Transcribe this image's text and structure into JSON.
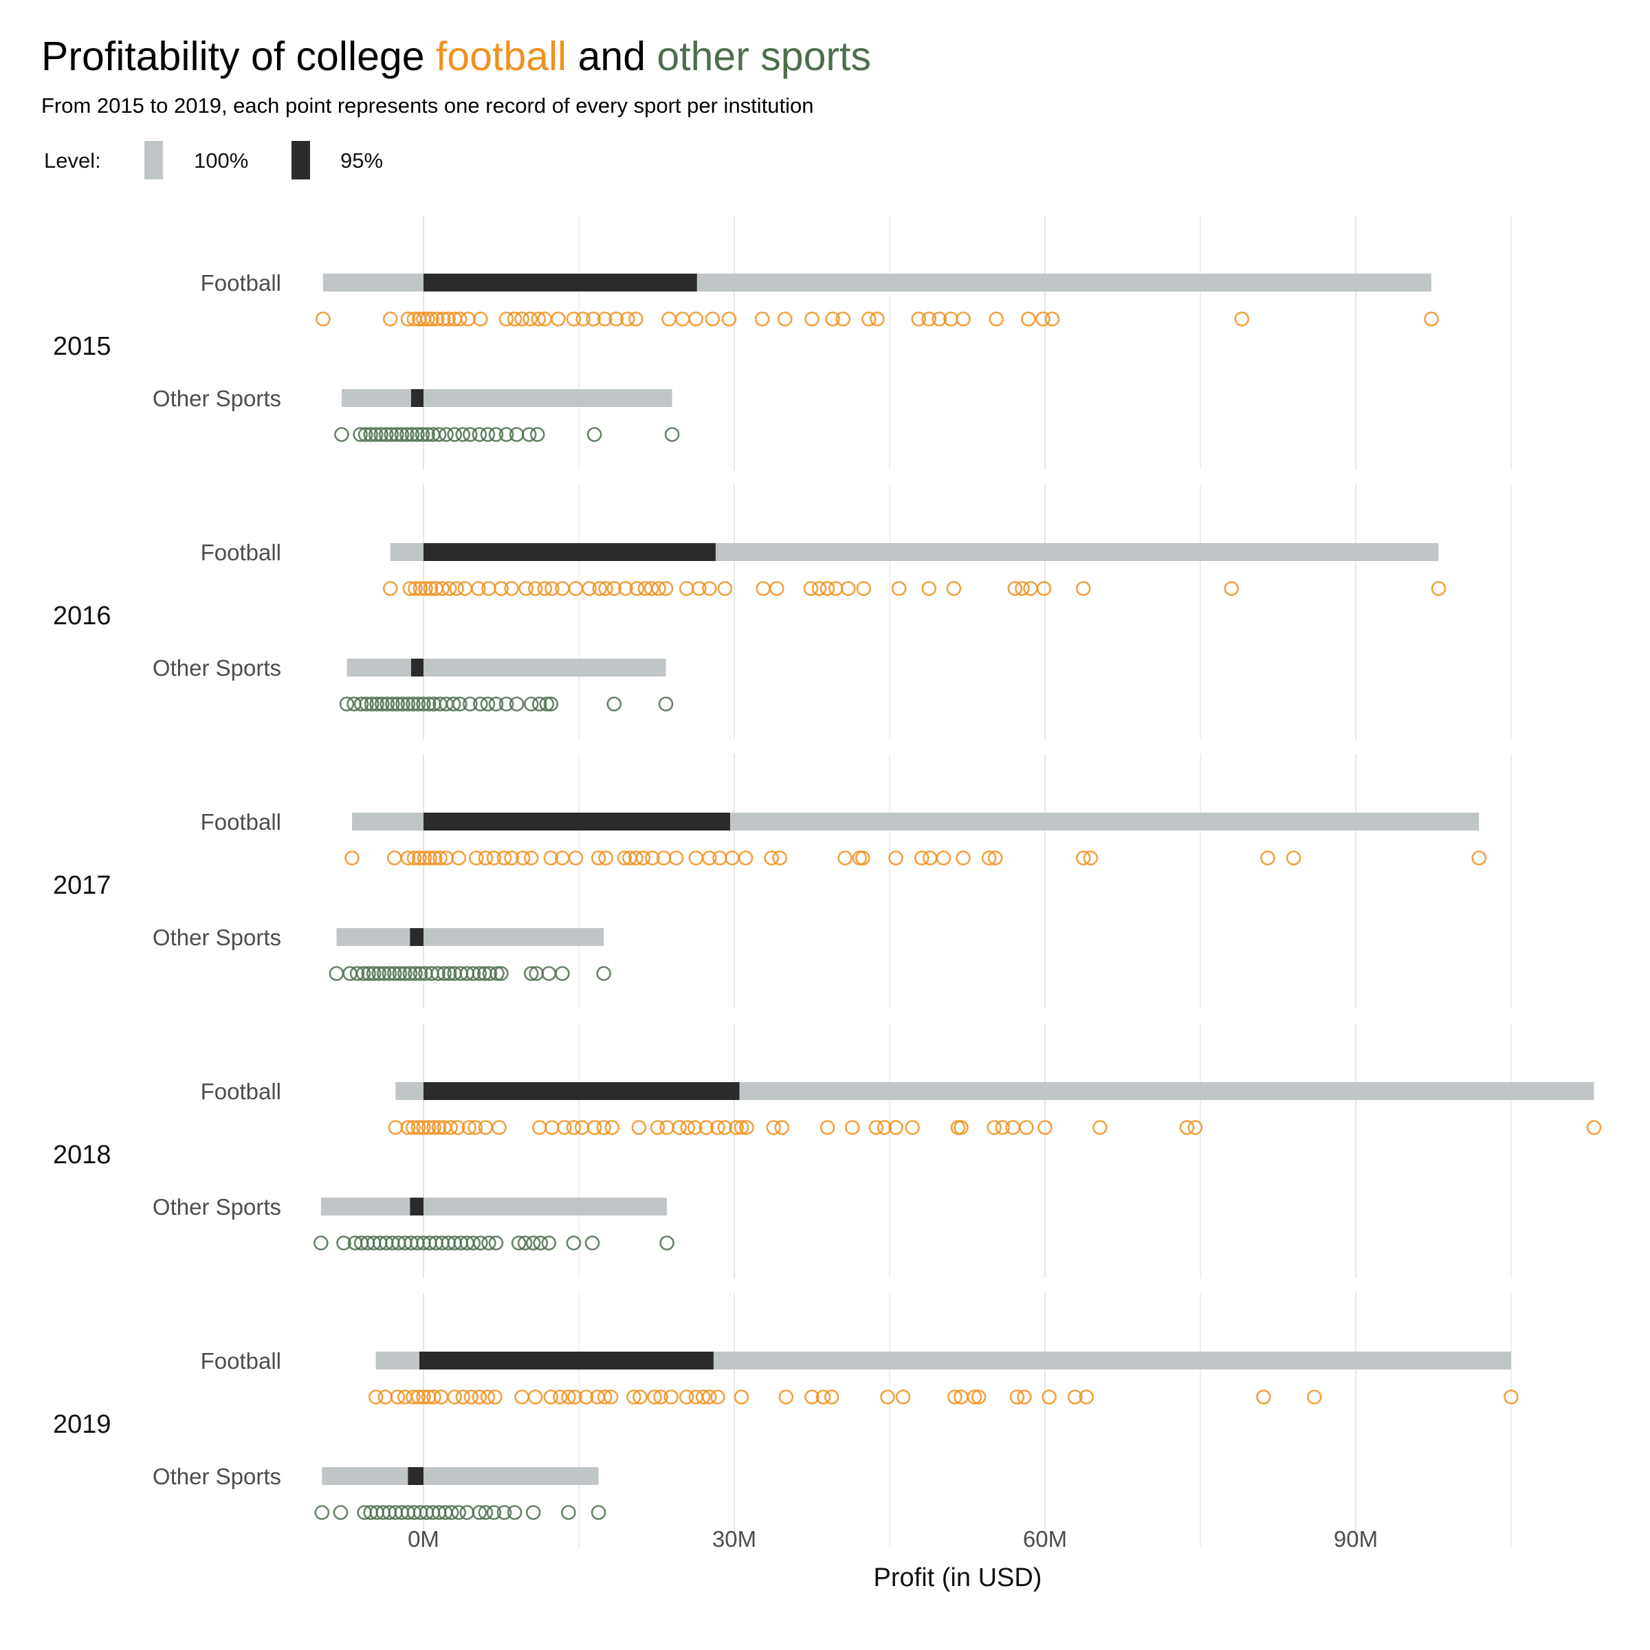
{
  "title": {
    "part1": "Profitability of college ",
    "part2": "football",
    "part3": " and ",
    "part4": "other sports"
  },
  "subtitle": "From 2015 to 2019, each point represents one record of every sport per institution",
  "legend": {
    "label": "Level:",
    "items": [
      {
        "name": "100%",
        "color": "#c0c5c8"
      },
      {
        "name": "95%",
        "color": "#2b2b2b"
      }
    ]
  },
  "colors": {
    "football": "#f0911e",
    "other": "#4e6e4e",
    "range100": "#c0c5c8",
    "range95": "#2b2b2b",
    "grid": "#e6e6e6"
  },
  "chart_data": {
    "type": "scatter",
    "xlabel": "Profit (in USD)",
    "x_unit": "M",
    "xlim": [
      -13,
      113
    ],
    "xticks": [
      {
        "value": 0,
        "label": "0M"
      },
      {
        "value": 30,
        "label": "30M"
      },
      {
        "value": 60,
        "label": "60M"
      },
      {
        "value": 90,
        "label": "90M"
      }
    ],
    "grid": true,
    "legend_position": "top-left",
    "panels": [
      {
        "year": "2015",
        "rows": [
          {
            "label": "Football",
            "kind": "football",
            "range100": [
              -9.7,
              97.3
            ],
            "range95": [
              0,
              26.4
            ],
            "points": [
              -9.7,
              -3.2,
              -1.5,
              -0.9,
              -0.4,
              0,
              0.4,
              0.8,
              1.3,
              1.9,
              2.4,
              3.0,
              3.5,
              4.3,
              5.5,
              8.0,
              8.8,
              9.5,
              10.3,
              11.1,
              11.7,
              13.0,
              14.5,
              15.4,
              16.4,
              17.5,
              18.6,
              19.7,
              20.5,
              23.7,
              25.0,
              26.3,
              27.9,
              29.5,
              32.7,
              34.9,
              37.5,
              39.5,
              40.5,
              43.0,
              43.8,
              47.8,
              48.8,
              49.8,
              50.9,
              52.1,
              55.3,
              58.4,
              59.8,
              60.7,
              79.0,
              97.3
            ]
          },
          {
            "label": "Other Sports",
            "kind": "other",
            "range100": [
              -7.9,
              24.0
            ],
            "range95": [
              -1.2,
              0
            ],
            "points": [
              -7.9,
              -6.1,
              -5.6,
              -5.1,
              -4.6,
              -4.1,
              -3.6,
              -3.1,
              -2.6,
              -2.1,
              -1.6,
              -1.1,
              -0.6,
              -0.1,
              0.4,
              0.9,
              1.5,
              2.2,
              3.0,
              3.8,
              4.5,
              5.4,
              6.2,
              7.0,
              8.0,
              9.0,
              10.2,
              11.0,
              16.5,
              24.0
            ]
          }
        ]
      },
      {
        "year": "2016",
        "rows": [
          {
            "label": "Football",
            "kind": "football",
            "range100": [
              -3.2,
              98.0
            ],
            "range95": [
              0,
              28.2
            ],
            "points": [
              -3.2,
              -1.3,
              -0.8,
              -0.3,
              0.2,
              0.7,
              1.2,
              1.8,
              2.5,
              3.2,
              4.0,
              5.3,
              6.3,
              7.5,
              8.5,
              9.9,
              10.8,
              11.7,
              12.4,
              13.4,
              14.7,
              16.0,
              17.0,
              17.6,
              18.4,
              19.5,
              20.6,
              21.4,
              22.0,
              22.7,
              23.4,
              25.4,
              26.6,
              27.6,
              29.1,
              32.8,
              34.1,
              37.4,
              38.2,
              39.0,
              39.8,
              41.0,
              42.5,
              45.9,
              48.8,
              51.2,
              57.1,
              57.8,
              58.6,
              59.9,
              63.7,
              78.0,
              98.0
            ]
          },
          {
            "label": "Other Sports",
            "kind": "other",
            "range100": [
              -7.4,
              23.4
            ],
            "range95": [
              -1.2,
              0
            ],
            "points": [
              -7.4,
              -6.7,
              -6.0,
              -5.5,
              -5.0,
              -4.5,
              -4.0,
              -3.5,
              -3.0,
              -2.5,
              -2.0,
              -1.5,
              -1.0,
              -0.5,
              0,
              0.5,
              1.0,
              1.6,
              2.2,
              2.9,
              3.5,
              4.5,
              5.5,
              6.2,
              7.0,
              8.0,
              9.0,
              10.4,
              11.2,
              11.9,
              12.3,
              18.4,
              23.4
            ]
          }
        ]
      },
      {
        "year": "2017",
        "rows": [
          {
            "label": "Football",
            "kind": "football",
            "range100": [
              -6.9,
              101.9
            ],
            "range95": [
              0,
              29.6
            ],
            "points": [
              -6.9,
              -2.8,
              -1.5,
              -0.9,
              -0.4,
              0.1,
              0.6,
              1.1,
              1.6,
              2.2,
              3.4,
              5.1,
              6.0,
              6.8,
              7.8,
              8.5,
              9.6,
              10.4,
              12.3,
              13.4,
              14.7,
              16.9,
              17.6,
              19.4,
              19.9,
              20.5,
              21.2,
              22.1,
              23.2,
              24.4,
              26.3,
              27.6,
              28.6,
              29.8,
              31.1,
              33.6,
              34.4,
              40.7,
              42.1,
              42.4,
              45.6,
              48.1,
              48.9,
              50.2,
              52.1,
              54.6,
              55.2,
              63.7,
              64.4,
              81.5,
              84.0,
              101.9
            ]
          },
          {
            "label": "Other Sports",
            "kind": "other",
            "range100": [
              -8.4,
              17.4
            ],
            "range95": [
              -1.3,
              0
            ],
            "points": [
              -8.4,
              -7.1,
              -6.4,
              -5.8,
              -5.3,
              -4.8,
              -4.3,
              -3.8,
              -3.3,
              -2.8,
              -2.3,
              -1.8,
              -1.3,
              -0.8,
              -0.3,
              0.2,
              0.8,
              1.4,
              2.0,
              2.5,
              3.0,
              3.6,
              4.2,
              4.8,
              5.4,
              5.9,
              6.4,
              7.1,
              7.5,
              10.4,
              10.9,
              12.1,
              13.4,
              17.4
            ]
          }
        ]
      },
      {
        "year": "2018",
        "rows": [
          {
            "label": "Football",
            "kind": "football",
            "range100": [
              -2.7,
              113.0
            ],
            "range95": [
              0,
              30.5
            ],
            "points": [
              -2.7,
              -1.5,
              -1.0,
              -0.5,
              0,
              0.5,
              1.0,
              1.5,
              2.0,
              2.6,
              3.3,
              4.4,
              5.0,
              6.0,
              7.3,
              11.2,
              12.4,
              13.6,
              14.5,
              15.3,
              16.5,
              17.4,
              18.2,
              20.8,
              22.6,
              23.5,
              24.7,
              25.5,
              26.2,
              27.3,
              28.4,
              29.1,
              30.2,
              30.7,
              31.2,
              33.8,
              34.6,
              39.0,
              41.4,
              43.7,
              44.5,
              45.6,
              47.2,
              51.6,
              51.9,
              55.1,
              55.9,
              56.9,
              58.2,
              60.0,
              65.3,
              73.7,
              74.5,
              113.0
            ]
          },
          {
            "label": "Other Sports",
            "kind": "other",
            "range100": [
              -9.9,
              23.5
            ],
            "range95": [
              -1.3,
              0
            ],
            "points": [
              -9.9,
              -7.7,
              -6.6,
              -6.0,
              -5.4,
              -4.8,
              -4.2,
              -3.6,
              -3.0,
              -2.4,
              -1.8,
              -1.2,
              -0.6,
              0,
              0.6,
              1.2,
              1.8,
              2.4,
              3.0,
              3.6,
              4.2,
              4.8,
              5.5,
              6.3,
              7.0,
              9.2,
              9.8,
              10.6,
              11.3,
              12.1,
              14.5,
              16.3,
              23.5
            ]
          }
        ]
      },
      {
        "year": "2019",
        "rows": [
          {
            "label": "Football",
            "kind": "football",
            "range100": [
              -4.6,
              105.0
            ],
            "range95": [
              -0.4,
              28.0
            ],
            "points": [
              -4.6,
              -3.7,
              -2.5,
              -1.8,
              -1.0,
              -0.5,
              0,
              0.5,
              1.0,
              1.7,
              3.0,
              3.8,
              4.6,
              5.4,
              6.2,
              6.9,
              9.5,
              10.8,
              12.3,
              13.2,
              14.0,
              14.6,
              15.7,
              16.8,
              17.5,
              18.1,
              20.3,
              20.9,
              22.3,
              22.9,
              23.9,
              25.4,
              26.3,
              27.0,
              27.6,
              28.4,
              30.7,
              35.0,
              37.5,
              38.6,
              39.4,
              44.8,
              46.3,
              51.3,
              51.9,
              53.2,
              53.6,
              57.3,
              58.0,
              60.4,
              62.9,
              64.0,
              81.1,
              86.0,
              105.0
            ]
          },
          {
            "label": "Other Sports",
            "kind": "other",
            "range100": [
              -9.8,
              16.9
            ],
            "range95": [
              -1.5,
              0
            ],
            "points": [
              -9.8,
              -8.0,
              -5.7,
              -5.1,
              -4.5,
              -3.9,
              -3.3,
              -2.7,
              -2.1,
              -1.5,
              -0.9,
              -0.3,
              0.3,
              0.9,
              1.5,
              2.1,
              2.7,
              3.4,
              4.2,
              5.4,
              6.0,
              6.8,
              7.8,
              8.8,
              10.6,
              14.0,
              16.9
            ]
          }
        ]
      }
    ]
  }
}
